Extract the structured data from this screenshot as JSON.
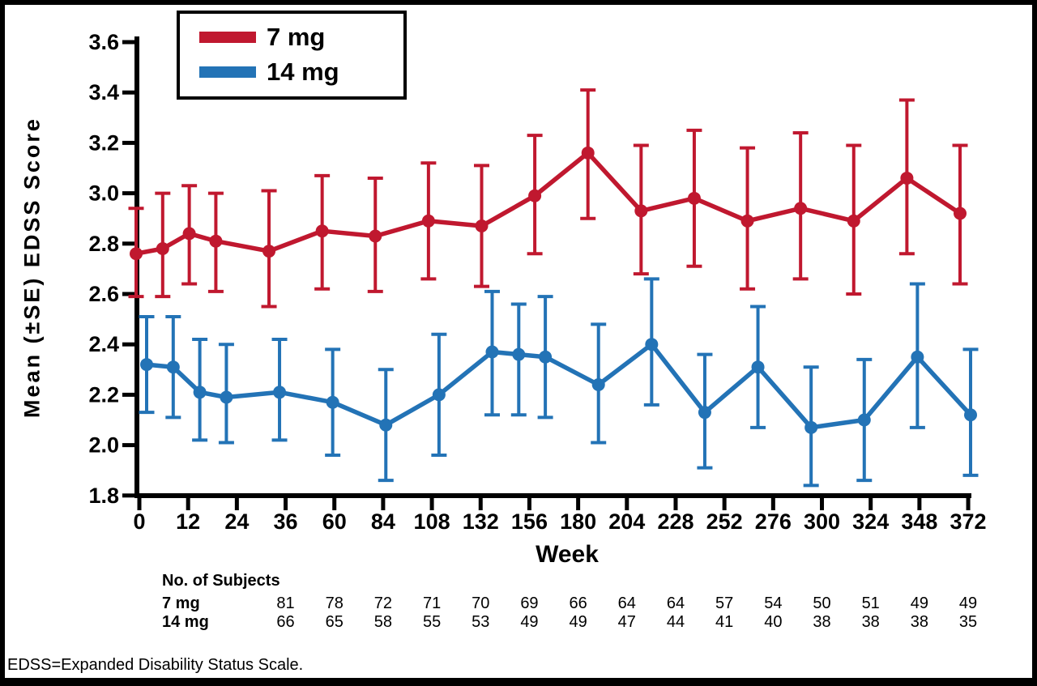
{
  "window": {
    "background": "#ffffff",
    "frame_color": "#000000"
  },
  "legend": {
    "items": [
      {
        "label": "7 mg",
        "color": "#C0182F"
      },
      {
        "label": "14 mg",
        "color": "#2373B6"
      }
    ]
  },
  "chart_data": {
    "type": "line",
    "title": "",
    "xlabel": "Week",
    "ylabel": "Mean (±SE) EDSS Score",
    "ylim": [
      1.8,
      3.6
    ],
    "grid": false,
    "legend_position": "top-left",
    "error_bars": "±SE",
    "y_ticks": [
      3.6,
      3.4,
      3.2,
      3.0,
      2.8,
      2.6,
      2.4,
      2.2,
      2.0,
      1.8
    ],
    "x_ticks": [
      0,
      12,
      24,
      36,
      60,
      84,
      108,
      132,
      156,
      180,
      204,
      228,
      252,
      276,
      300,
      324,
      348,
      372
    ],
    "series": [
      {
        "name": "7 mg",
        "color": "#C0182F",
        "x": [
          0,
          12,
          24,
          36,
          60,
          84,
          108,
          132,
          156,
          180,
          204,
          228,
          252,
          276,
          300,
          324,
          348,
          372
        ],
        "y": [
          2.76,
          2.78,
          2.84,
          2.81,
          2.77,
          2.85,
          2.83,
          2.89,
          2.87,
          2.99,
          3.16,
          2.93,
          2.98,
          2.89,
          2.94,
          2.89,
          3.06,
          2.92
        ],
        "err_low": [
          2.59,
          2.59,
          2.64,
          2.61,
          2.55,
          2.62,
          2.61,
          2.66,
          2.63,
          2.76,
          2.9,
          2.68,
          2.71,
          2.62,
          2.66,
          2.6,
          2.76,
          2.64
        ],
        "err_high": [
          2.94,
          3.0,
          3.03,
          3.0,
          3.01,
          3.07,
          3.06,
          3.12,
          3.11,
          3.23,
          3.41,
          3.19,
          3.25,
          3.18,
          3.24,
          3.19,
          3.37,
          3.19
        ]
      },
      {
        "name": "14 mg",
        "color": "#2373B6",
        "x": [
          0,
          12,
          24,
          36,
          60,
          84,
          108,
          132,
          156,
          168,
          180,
          204,
          228,
          252,
          276,
          300,
          324,
          348,
          372
        ],
        "y": [
          2.32,
          2.31,
          2.21,
          2.19,
          2.21,
          2.17,
          2.08,
          2.2,
          2.37,
          2.36,
          2.35,
          2.24,
          2.4,
          2.13,
          2.31,
          2.07,
          2.1,
          2.35,
          2.12
        ],
        "err_low": [
          2.13,
          2.11,
          2.02,
          2.01,
          2.02,
          1.96,
          1.86,
          1.96,
          2.12,
          2.12,
          2.11,
          2.01,
          2.16,
          1.91,
          2.07,
          1.84,
          1.86,
          2.07,
          1.88
        ],
        "err_high": [
          2.51,
          2.51,
          2.42,
          2.4,
          2.42,
          2.38,
          2.3,
          2.44,
          2.61,
          2.56,
          2.59,
          2.48,
          2.66,
          2.36,
          2.55,
          2.31,
          2.34,
          2.64,
          2.38
        ]
      }
    ]
  },
  "subjects_table": {
    "title": "No. of Subjects",
    "weeks": [
      36,
      60,
      84,
      108,
      132,
      156,
      180,
      204,
      228,
      252,
      276,
      300,
      324,
      348,
      372
    ],
    "rows": [
      {
        "label": "7 mg",
        "values": [
          81,
          78,
          72,
          71,
          70,
          69,
          66,
          64,
          64,
          57,
          54,
          50,
          51,
          49,
          49
        ]
      },
      {
        "label": "14 mg",
        "values": [
          66,
          65,
          58,
          55,
          53,
          49,
          49,
          47,
          44,
          41,
          40,
          38,
          38,
          38,
          35
        ]
      }
    ]
  },
  "footnote": "EDSS=Expanded Disability Status Scale."
}
